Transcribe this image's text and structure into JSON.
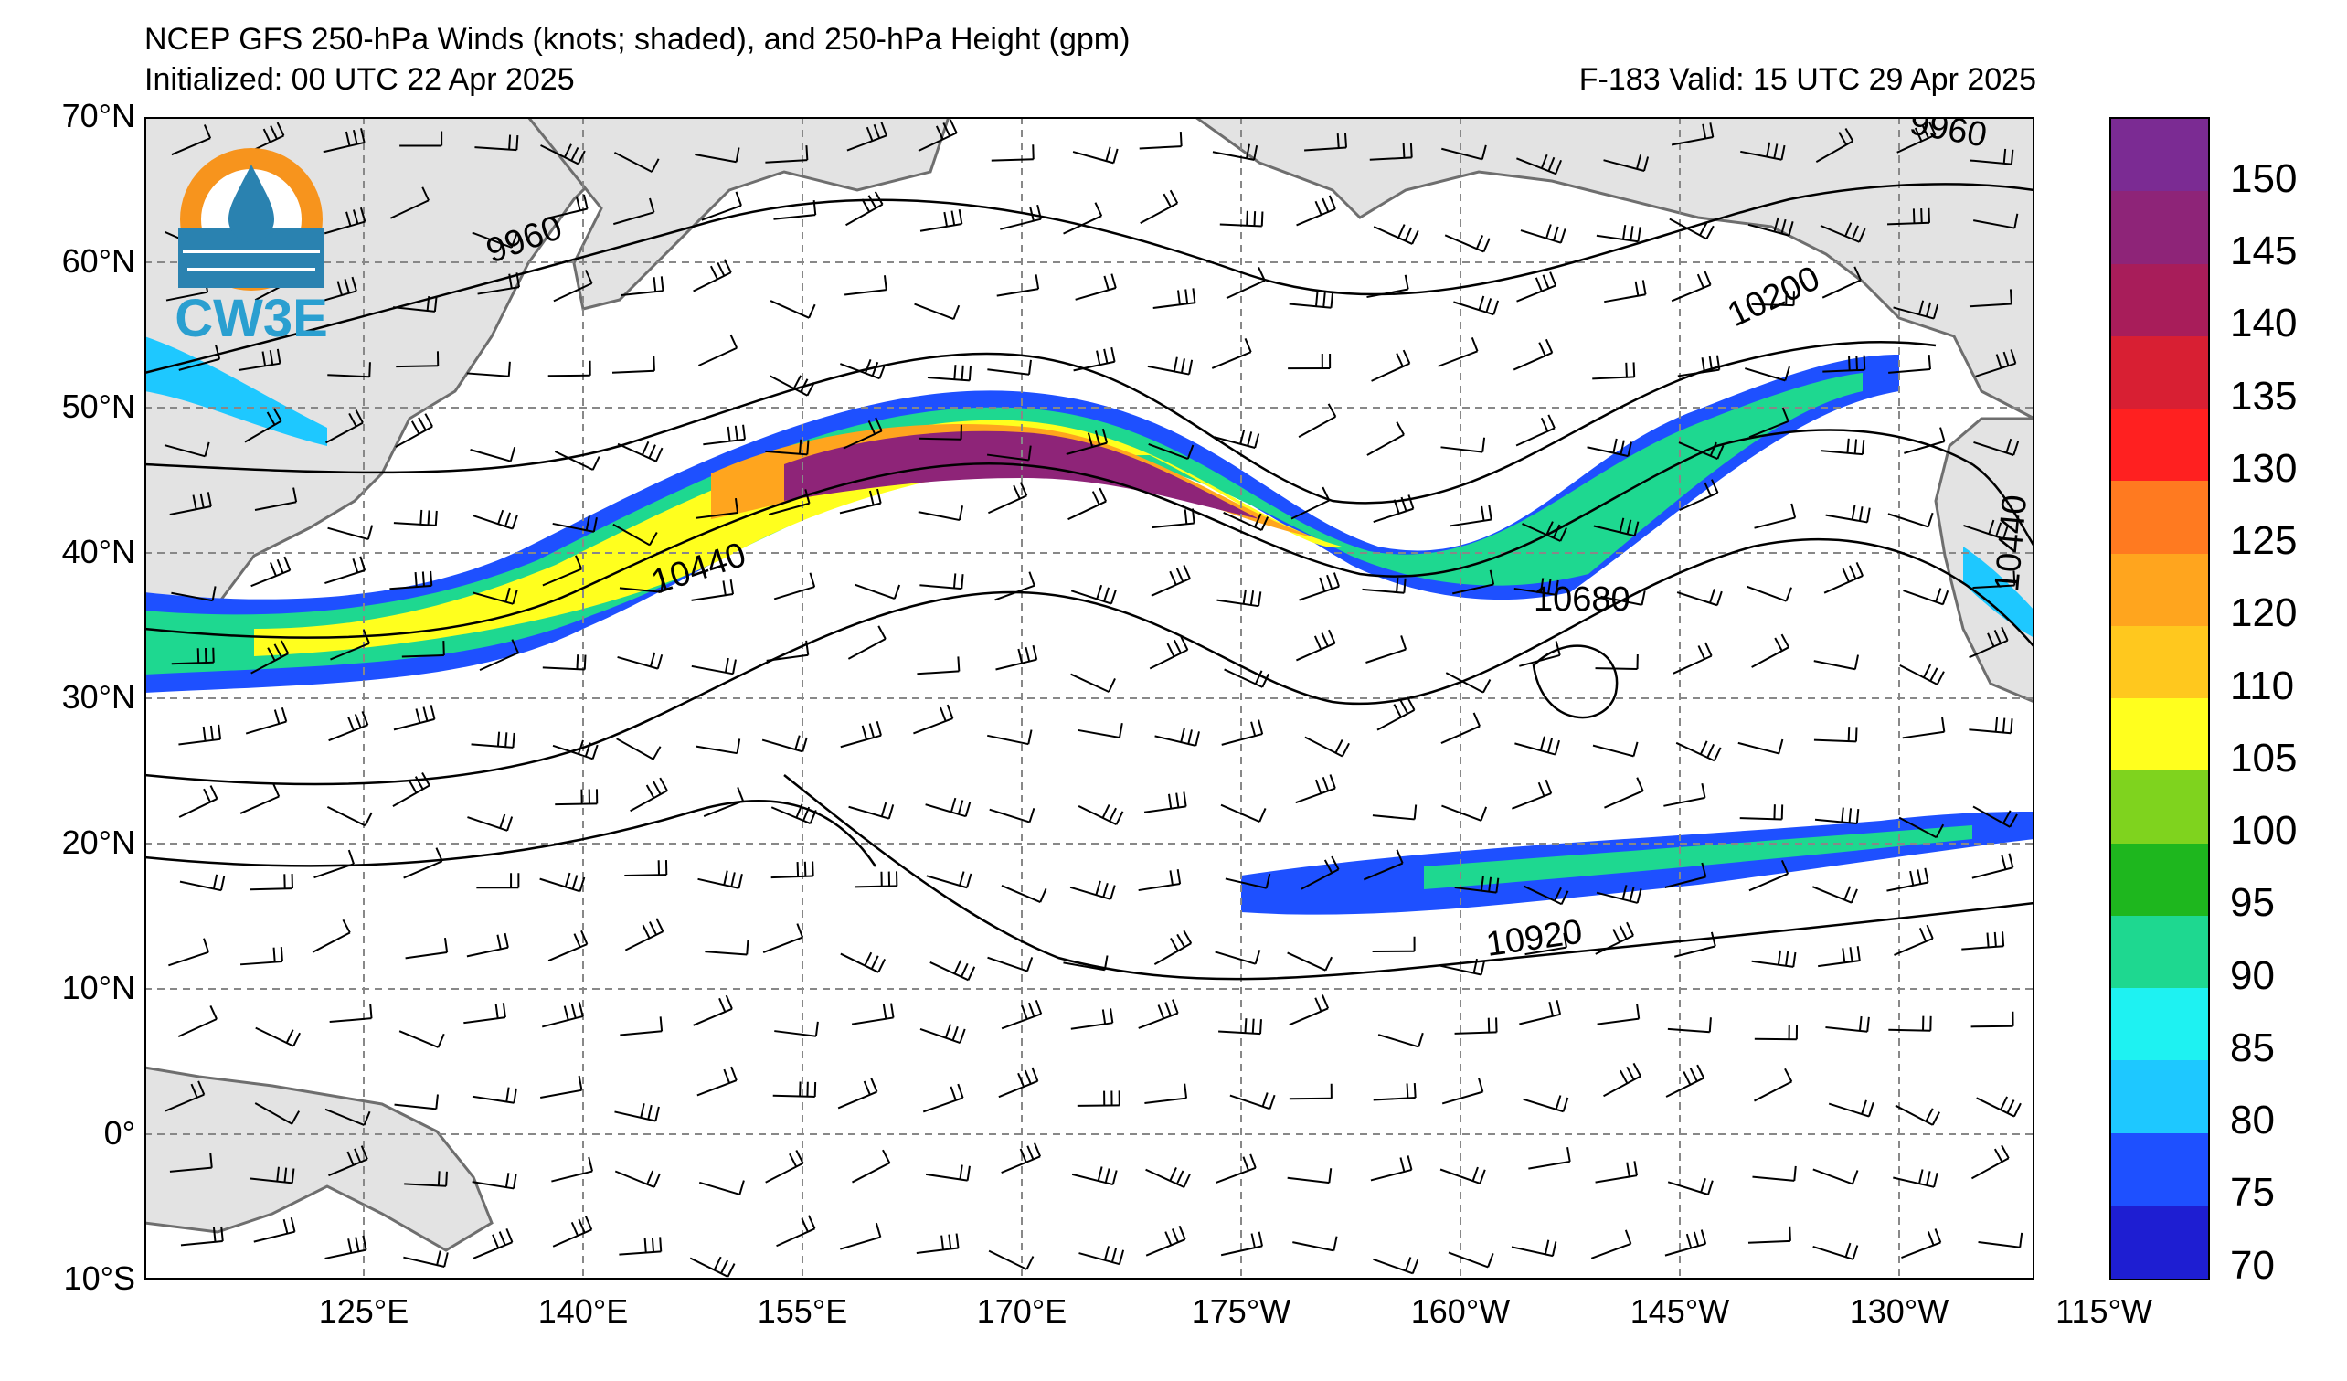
{
  "title": {
    "line1": "NCEP GFS 250-hPa Winds (knots; shaded), and 250-hPa Height (gpm)",
    "initialized": "Initialized: 00 UTC 22 Apr 2025",
    "valid": "F-183  Valid: 15 UTC 29 Apr 2025"
  },
  "logo": {
    "text": "CW3E",
    "icon": "cw3e-water-drop-logo"
  },
  "axes": {
    "lat_labels": [
      "70°N",
      "60°N",
      "50°N",
      "40°N",
      "30°N",
      "20°N",
      "10°N",
      "0°",
      "10°S"
    ],
    "lon_labels": [
      "125°E",
      "140°E",
      "155°E",
      "170°E",
      "175°W",
      "160°W",
      "145°W",
      "130°W",
      "115°W"
    ]
  },
  "contour_labels": [
    "9960",
    "9960",
    "10200",
    "10440",
    "10440",
    "10680",
    "10920"
  ],
  "colorbar": {
    "ticks": [
      "150",
      "145",
      "140",
      "135",
      "130",
      "125",
      "120",
      "110",
      "105",
      "100",
      "95",
      "90",
      "85",
      "80",
      "75",
      "70"
    ],
    "colors": [
      "#7b2b93",
      "#8e2478",
      "#a81d5a",
      "#d81f33",
      "#ff2020",
      "#ff7a20",
      "#ffa51e",
      "#ffc81e",
      "#ffff1e",
      "#7fd31e",
      "#1eb71e",
      "#1ed890",
      "#1ef2f2",
      "#1ec8ff",
      "#1e50ff",
      "#1e1ed2"
    ]
  }
}
